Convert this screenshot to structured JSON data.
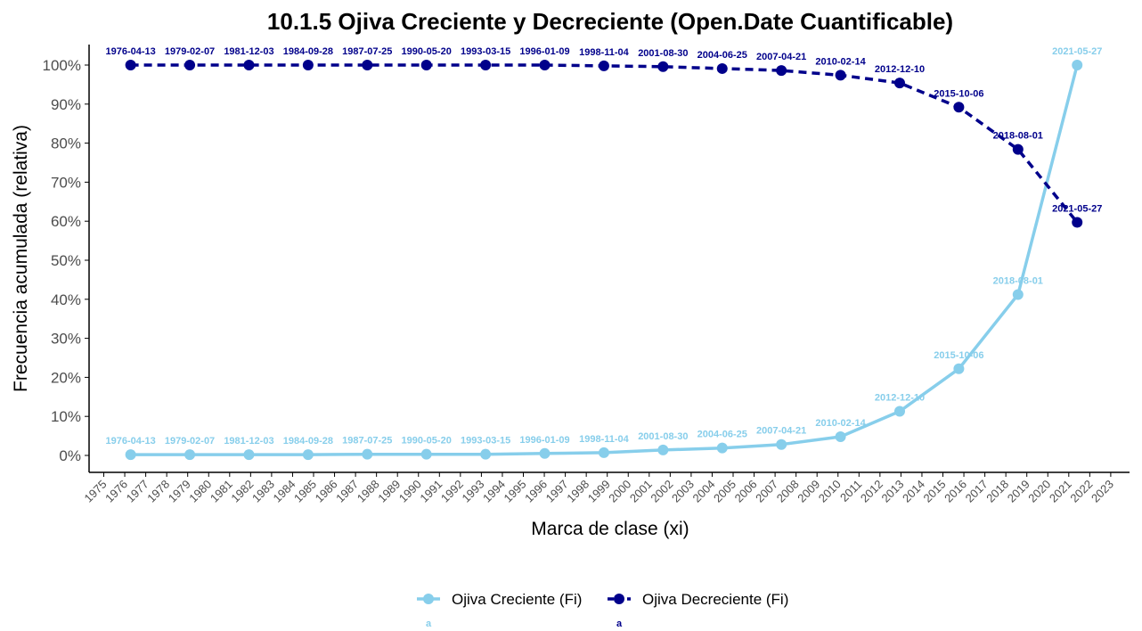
{
  "colors": {
    "creciente": "#87CEEB",
    "decreciente": "#00008B",
    "axis": "#000000",
    "tick_text": "#4d4d4d"
  },
  "chart_data": {
    "type": "line",
    "title": "10.1.5 Ojiva Creciente y Decreciente (Open.Date Cuantificable)",
    "xlabel": "Marca de clase (xi)",
    "ylabel": "Frecuencia acumulada (relativa)",
    "xlim": [
      1975,
      2023
    ],
    "ylim": [
      0,
      100
    ],
    "x_ticks": [
      "1975",
      "1976",
      "1977",
      "1978",
      "1979",
      "1980",
      "1981",
      "1982",
      "1983",
      "1984",
      "1985",
      "1986",
      "1987",
      "1988",
      "1989",
      "1990",
      "1991",
      "1992",
      "1993",
      "1994",
      "1995",
      "1996",
      "1997",
      "1998",
      "1999",
      "2000",
      "2001",
      "2002",
      "2003",
      "2004",
      "2005",
      "2006",
      "2007",
      "2008",
      "2009",
      "2010",
      "2011",
      "2012",
      "2013",
      "2014",
      "2015",
      "2016",
      "2017",
      "2018",
      "2019",
      "2020",
      "2021",
      "2022",
      "2023"
    ],
    "y_ticks": [
      "0%",
      "10%",
      "20%",
      "30%",
      "40%",
      "50%",
      "60%",
      "70%",
      "80%",
      "90%",
      "100%"
    ],
    "x": [
      1976.28,
      1979.1,
      1981.92,
      1984.74,
      1987.56,
      1990.38,
      1993.2,
      1996.02,
      1998.84,
      2001.66,
      2004.48,
      2007.3,
      2010.12,
      2012.94,
      2015.76,
      2018.58,
      2021.4
    ],
    "point_labels": [
      "1976-04-13",
      "1979-02-07",
      "1981-12-03",
      "1984-09-28",
      "1987-07-25",
      "1990-05-20",
      "1993-03-15",
      "1996-01-09",
      "1998-11-04",
      "2001-08-30",
      "2004-06-25",
      "2007-04-21",
      "2010-02-14",
      "2012-12-10",
      "2015-10-06",
      "2018-08-01",
      "2021-05-27"
    ],
    "series": [
      {
        "name": "Ojiva Creciente (Fi)",
        "style": "solid",
        "values": [
          0.2,
          0.2,
          0.2,
          0.2,
          0.3,
          0.3,
          0.3,
          0.5,
          0.7,
          1.4,
          1.9,
          2.8,
          4.8,
          11.3,
          22.2,
          41.2,
          100
        ]
      },
      {
        "name": "Ojiva Decreciente (Fi)",
        "style": "dashed",
        "values": [
          100,
          100,
          100,
          100,
          100,
          100,
          100,
          100,
          99.8,
          99.6,
          99.1,
          98.6,
          97.4,
          95.4,
          89.2,
          78.4,
          59.7
        ]
      }
    ],
    "legend": {
      "position": "bottom",
      "items": [
        {
          "label": "Ojiva Creciente (Fi)",
          "sub": "a"
        },
        {
          "label": "Ojiva Decreciente (Fi)",
          "sub": "a"
        }
      ]
    },
    "grid": false
  }
}
